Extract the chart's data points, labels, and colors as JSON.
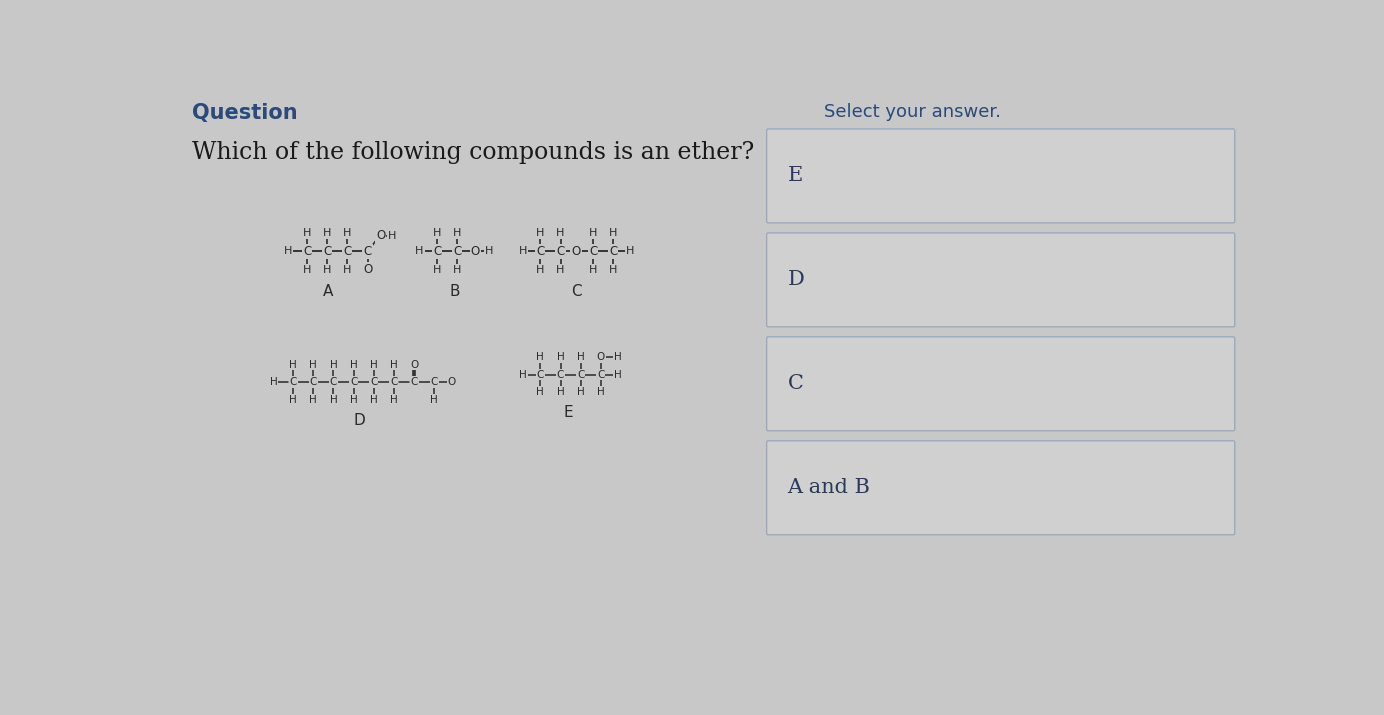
{
  "title": "Question",
  "question": "Which of the following compounds is an ether?",
  "bg_color": "#c8c8c8",
  "title_color": "#2b4a7a",
  "question_color": "#1a1a1a",
  "select_answer_color": "#2b4a7a",
  "answer_options": [
    "E",
    "D",
    "C",
    "A and B"
  ],
  "answer_text_color": "#2b3a5a",
  "atom_color": "#2a2a2a",
  "bond_color": "#2a2a2a"
}
